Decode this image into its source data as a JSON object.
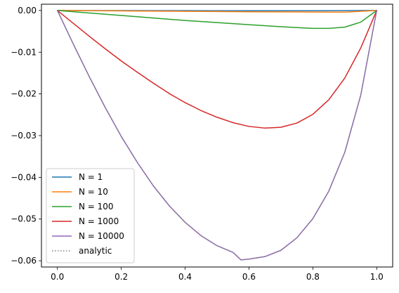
{
  "chart_data": {
    "type": "line",
    "title": "",
    "xlabel": "",
    "ylabel": "",
    "xlim": [
      -0.05,
      1.05
    ],
    "ylim": [
      -0.0615,
      0.0015
    ],
    "grid": false,
    "legend_placement": "lower-left",
    "x_ticks": [
      0.0,
      0.2,
      0.4,
      0.6,
      0.8,
      1.0
    ],
    "x_tick_labels": [
      "0.0",
      "0.2",
      "0.4",
      "0.6",
      "0.8",
      "1.0"
    ],
    "y_ticks": [
      0.0,
      -0.01,
      -0.02,
      -0.03,
      -0.04,
      -0.05,
      -0.06
    ],
    "y_tick_labels": [
      "0.00",
      "−0.01",
      "−0.02",
      "−0.03",
      "−0.04",
      "−0.05",
      "−0.06"
    ],
    "series": [
      {
        "name": "N = 1",
        "color": "#1f77b4",
        "style": "solid",
        "x": [
          0.0,
          0.1,
          0.2,
          0.3,
          0.4,
          0.5,
          0.6,
          0.7,
          0.8,
          0.9,
          1.0
        ],
        "y": [
          0.0,
          -1e-05,
          -2e-05,
          -3e-05,
          -4e-05,
          -5e-05,
          -5e-05,
          -5e-05,
          -5e-05,
          -4e-05,
          0.0
        ]
      },
      {
        "name": "N = 10",
        "color": "#ff7f0e",
        "style": "solid",
        "x": [
          0.0,
          0.1,
          0.2,
          0.3,
          0.4,
          0.5,
          0.6,
          0.7,
          0.8,
          0.9,
          1.0
        ],
        "y": [
          0.0,
          -5e-05,
          -0.0001,
          -0.00016,
          -0.0002,
          -0.00025,
          -0.0003,
          -0.00034,
          -0.00038,
          -0.0004,
          0.0
        ]
      },
      {
        "name": "N = 100",
        "color": "#2ca02c",
        "style": "solid",
        "x": [
          0.0,
          0.1,
          0.2,
          0.3,
          0.4,
          0.5,
          0.6,
          0.7,
          0.75,
          0.8,
          0.85,
          0.9,
          0.95,
          1.0
        ],
        "y": [
          0.0,
          -0.0006,
          -0.0012,
          -0.0018,
          -0.0024,
          -0.0029,
          -0.0034,
          -0.0039,
          -0.0041,
          -0.0043,
          -0.0043,
          -0.004,
          -0.0028,
          0.0
        ]
      },
      {
        "name": "N = 1000",
        "color": "#d62728",
        "style": "solid",
        "x": [
          0.0,
          0.05,
          0.1,
          0.15,
          0.2,
          0.25,
          0.3,
          0.35,
          0.4,
          0.45,
          0.5,
          0.55,
          0.6,
          0.65,
          0.7,
          0.75,
          0.8,
          0.85,
          0.9,
          0.95,
          1.0
        ],
        "y": [
          0.0,
          -0.0031,
          -0.0062,
          -0.0092,
          -0.0121,
          -0.0148,
          -0.0174,
          -0.0199,
          -0.0221,
          -0.024,
          -0.0256,
          -0.0269,
          -0.0278,
          -0.0282,
          -0.028,
          -0.027,
          -0.0249,
          -0.0214,
          -0.0162,
          -0.009,
          0.0
        ]
      },
      {
        "name": "N = 10000",
        "color": "#9467bd",
        "style": "solid",
        "x": [
          0.0,
          0.05,
          0.1,
          0.15,
          0.2,
          0.25,
          0.3,
          0.35,
          0.4,
          0.45,
          0.5,
          0.55,
          0.575,
          0.6,
          0.65,
          0.7,
          0.75,
          0.8,
          0.85,
          0.9,
          0.95,
          1.0
        ],
        "y": [
          0.0,
          -0.0081,
          -0.0159,
          -0.0233,
          -0.0302,
          -0.0364,
          -0.042,
          -0.0468,
          -0.0508,
          -0.054,
          -0.0564,
          -0.058,
          -0.0598,
          -0.0596,
          -0.059,
          -0.0575,
          -0.0545,
          -0.0499,
          -0.0433,
          -0.034,
          -0.0203,
          0.0
        ]
      },
      {
        "name": "analytic",
        "color": "#7f7f7f",
        "style": "dotted",
        "x": [
          0.0,
          0.05,
          0.1,
          0.15,
          0.2,
          0.25,
          0.3,
          0.35,
          0.4,
          0.45,
          0.5,
          0.55,
          0.575,
          0.6,
          0.65,
          0.7,
          0.75,
          0.8,
          0.85,
          0.9,
          0.95,
          1.0
        ],
        "y": [
          0.0,
          -0.0081,
          -0.0159,
          -0.0233,
          -0.0302,
          -0.0364,
          -0.042,
          -0.0468,
          -0.0508,
          -0.054,
          -0.0564,
          -0.058,
          -0.0598,
          -0.0596,
          -0.059,
          -0.0575,
          -0.0545,
          -0.0499,
          -0.0433,
          -0.034,
          -0.0203,
          0.0
        ]
      }
    ]
  }
}
